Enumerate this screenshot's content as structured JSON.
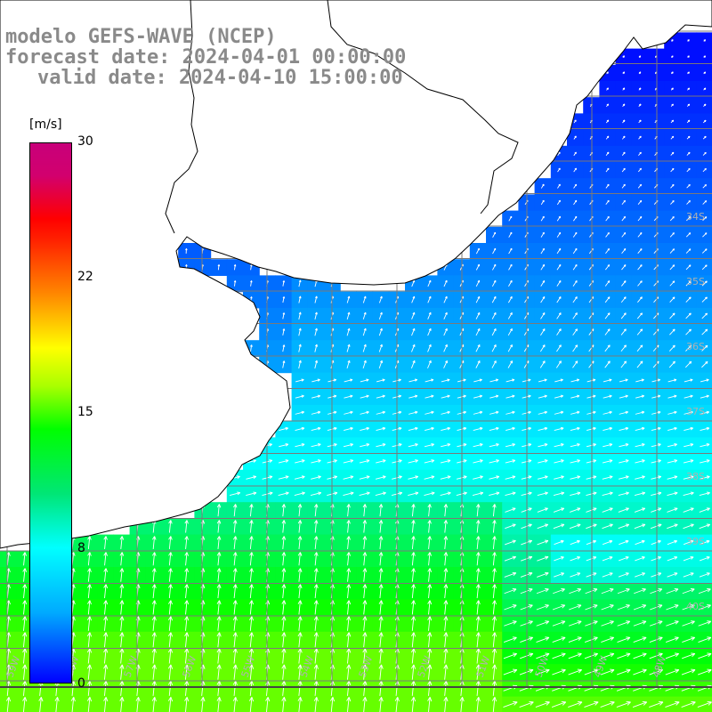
{
  "header": {
    "title_line1": "modelo GEFS-WAVE (NCEP)",
    "title_line2": "forecast date: 2024-04-01 00:00:00",
    "title_line3": "valid date: 2024-04-10 15:00:00"
  },
  "colorbar": {
    "unit": "[m/s]",
    "ticks": [
      "30",
      "22",
      "15",
      "8",
      "0"
    ],
    "colors": [
      "#0000ff",
      "#00aaff",
      "#00ffff",
      "#00ff00",
      "#ffff00",
      "#ff8800",
      "#ff0000",
      "#c8007a"
    ]
  },
  "map": {
    "latitude_labels": [
      "34S",
      "35S",
      "36S",
      "37S",
      "38S",
      "39S",
      "40S"
    ],
    "longitude_labels": [
      "59W",
      "58W",
      "57W",
      "56W",
      "55W",
      "54W",
      "53W",
      "52W",
      "51W",
      "50W",
      "49W",
      "48W"
    ],
    "land_color": "#ffffff",
    "grid_color": "#7a7a7a",
    "arrow_color": "#ffffff"
  }
}
